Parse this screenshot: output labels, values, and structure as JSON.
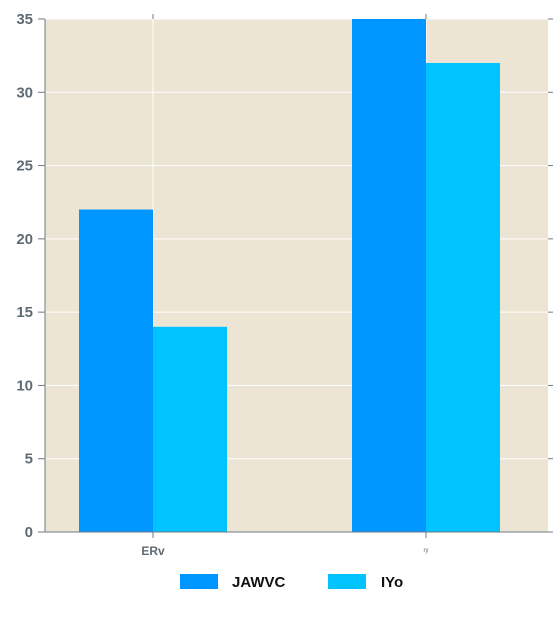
{
  "chart_data": {
    "type": "bar",
    "categories": [
      "ERv",
      "ry"
    ],
    "series": [
      {
        "name": "JAWVC",
        "values": [
          22,
          35
        ],
        "color": "#0096ff"
      },
      {
        "name": "IYo",
        "values": [
          14,
          32
        ],
        "color": "#00c3ff"
      }
    ],
    "ylim": [
      0,
      35
    ],
    "yticks": [
      0,
      5,
      10,
      15,
      20,
      25,
      30,
      35
    ],
    "grid": true,
    "legend_position": "bottom",
    "background_color": "#ece5d4",
    "grid_color": "#ffffff"
  }
}
